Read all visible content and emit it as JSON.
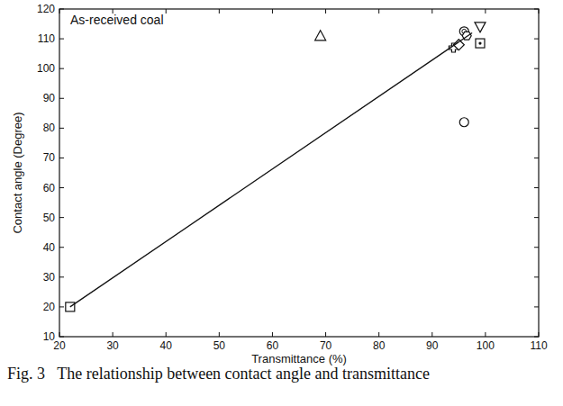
{
  "chart_data": {
    "type": "scatter",
    "title": "Fig. 3   The relationship between contact angle and transmittance",
    "annotation": "As-received coal",
    "x_label": "Transmittance (%)",
    "y_label": "Contact angle (Degree)",
    "xlim": [
      20,
      110
    ],
    "xticks": [
      20,
      30,
      40,
      50,
      60,
      70,
      80,
      90,
      100,
      110
    ],
    "ylim": [
      10,
      120
    ],
    "yticks": [
      10,
      20,
      30,
      40,
      50,
      60,
      70,
      80,
      90,
      100,
      110,
      120
    ],
    "grid": false,
    "color": "#111111",
    "series": [
      {
        "x": [
          22
        ],
        "values": [
          20
        ],
        "marker": "square"
      },
      {
        "x": [
          69
        ],
        "values": [
          111
        ],
        "marker": "triangle"
      },
      {
        "x": [
          96
        ],
        "values": [
          82
        ],
        "marker": "circle"
      },
      {
        "x": [
          94
        ],
        "values": [
          107
        ],
        "marker": "plus"
      },
      {
        "x": [
          95
        ],
        "values": [
          108
        ],
        "marker": "diamond"
      },
      {
        "x": [
          96
        ],
        "values": [
          112.5
        ],
        "marker": "circle-dot"
      },
      {
        "x": [
          96.5
        ],
        "values": [
          111
        ],
        "marker": "hexagon"
      },
      {
        "x": [
          99
        ],
        "values": [
          108.5
        ],
        "marker": "square-dot"
      },
      {
        "x": [
          99
        ],
        "values": [
          114
        ],
        "marker": "triangle-down"
      },
      {
        "type": "line",
        "x": [
          22,
          97.5
        ],
        "values": [
          20,
          112
        ],
        "marker": "none",
        "line_style": "solid"
      }
    ]
  }
}
